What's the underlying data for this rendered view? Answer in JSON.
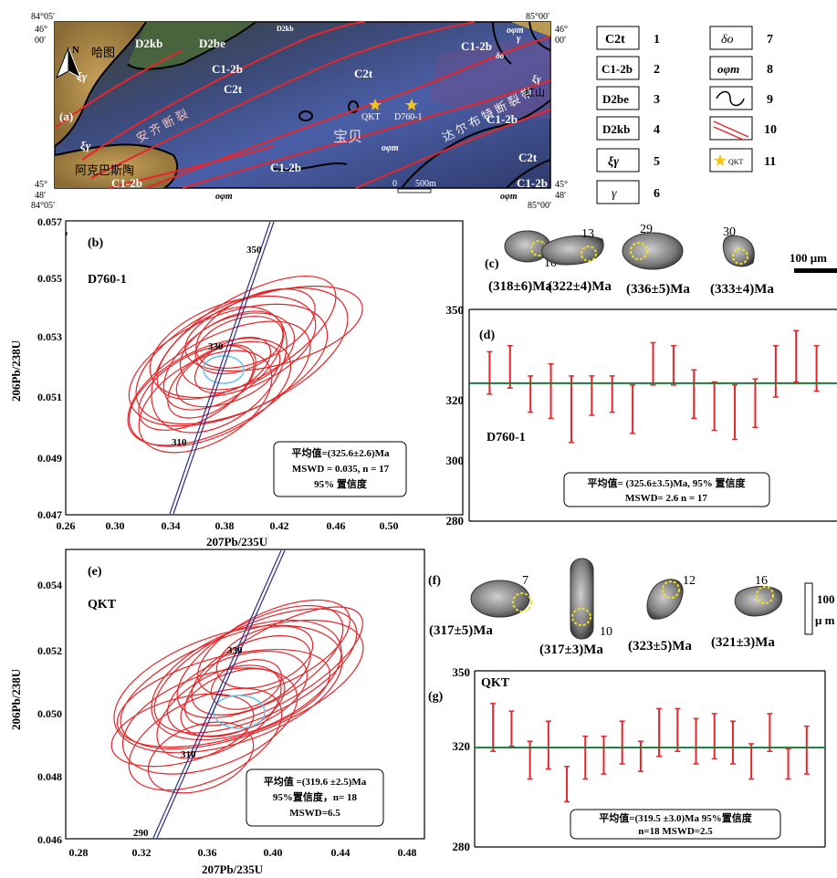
{
  "map": {
    "panel_label": "(a)",
    "coords": {
      "top_left_lon": "84°05′",
      "top_left_lat1": "46°",
      "top_left_lat2": "00′",
      "top_right_lon": "85°00′",
      "top_right_lat1": "46°",
      "top_right_lat2": "00′",
      "bottom_left_lon": "84°05′",
      "bottom_left_lat1": "45°",
      "bottom_left_lat2": "48′",
      "bottom_right_lon": "85°00′",
      "bottom_right_lat1": "45°",
      "bottom_right_lat2": "48′"
    },
    "north": "N",
    "scale": "500m",
    "scale_zero": "0",
    "labels": [
      "D2kb",
      "D2be",
      "D2kb",
      "C1-2b",
      "C2t",
      "C1-2b",
      "C2t",
      "C1-2b",
      "C2t",
      "C1-2b",
      "C1-2b",
      "C1-2b",
      "ξγ",
      "ξγ",
      "ξγ",
      "γ",
      "δο",
      "οφm",
      "οφm",
      "οφm",
      "οφm"
    ],
    "place_names": [
      "哈图",
      "安 齐 断 裂",
      "宝贝",
      "达 尔 布 特 断 裂 带",
      "红山",
      "阿克巴斯陶"
    ],
    "samples": [
      "QKT",
      "D760-1"
    ]
  },
  "legend": {
    "items": [
      {
        "num": "1",
        "symbol": "C2t"
      },
      {
        "num": "2",
        "symbol": "C1-2b"
      },
      {
        "num": "3",
        "symbol": "D2be"
      },
      {
        "num": "4",
        "symbol": "D2kb"
      },
      {
        "num": "5",
        "symbol": "ξγ"
      },
      {
        "num": "6",
        "symbol": "γ"
      },
      {
        "num": "7",
        "symbol": "δο"
      },
      {
        "num": "8",
        "symbol": "οφm"
      },
      {
        "num": "9",
        "symbol": ""
      },
      {
        "num": "10",
        "symbol": ""
      },
      {
        "num": "11",
        "symbol": "QKT"
      }
    ]
  },
  "panel_b": {
    "label": "(b)",
    "sample": "D760-1",
    "ylabel": "206Pb/238U",
    "xlabel": "207Pb/235U",
    "xticks": [
      "0.26",
      "0.30",
      "0.34",
      "0.38",
      "0.42",
      "0.46",
      "0.50"
    ],
    "yticks": [
      "0.047",
      "0.049",
      "0.051",
      "0.053",
      "0.055",
      "0.057"
    ],
    "concordia_labels": [
      "350",
      "330",
      "310"
    ],
    "summary": [
      "平均值=(325.6±2.6)Ma",
      "MSWD = 0.035,  n = 17",
      "95% 置信度"
    ]
  },
  "panel_c": {
    "label": "(c)",
    "grains": [
      {
        "num": "10",
        "age": "(318±6)Ma"
      },
      {
        "num": "13",
        "age": "(322±4)Ma"
      },
      {
        "num": "29",
        "age": "(336±5)Ma"
      },
      {
        "num": "30",
        "age": "(333±4)Ma"
      }
    ],
    "scale": "100 μm"
  },
  "panel_d": {
    "label": "(d)",
    "sample": "D760-1",
    "yticks": [
      "280",
      "300",
      "320",
      "350"
    ],
    "summary": [
      "平均值= (325.6±3.5)Ma, 95% 置信度",
      "MSWD= 2.6  n = 17"
    ]
  },
  "panel_e": {
    "label": "(e)",
    "sample": "QKT",
    "ylabel": "206Pb/238U",
    "xlabel": "207Pb/235U",
    "xticks": [
      "0.28",
      "0.32",
      "0.36",
      "0.40",
      "0.44",
      "0.48"
    ],
    "yticks": [
      "0.046",
      "0.048",
      "0.050",
      "0.052",
      "0.054"
    ],
    "concordia_labels": [
      "330",
      "310",
      "290"
    ],
    "summary": [
      "平均值 =(319.6 ±2.5)Ma",
      "95%置信度，n= 18",
      "MSWD=6.5"
    ]
  },
  "panel_f": {
    "label": "(f)",
    "grains": [
      {
        "num": "7",
        "age": "(317±5)Ma"
      },
      {
        "num": "10",
        "age": "(317±3)Ma"
      },
      {
        "num": "12",
        "age": "(323±5)Ma"
      },
      {
        "num": "16",
        "age": "(321±3)Ma"
      }
    ],
    "scale1": "100",
    "scale2": "μ m"
  },
  "panel_g": {
    "label": "(g)",
    "sample": "QKT",
    "yticks": [
      "280",
      "320",
      "350"
    ],
    "summary": [
      "平均值=(319.5 ±3.0)Ma   95%置信度",
      "n=18   MSWD=2.5"
    ]
  },
  "chart_data": [
    {
      "type": "bar",
      "title": "",
      "panel": "d",
      "ylim": [
        280,
        350
      ],
      "mean": 325.6,
      "errorbars": [
        [
          322,
          336
        ],
        [
          324,
          338
        ],
        [
          316,
          328
        ],
        [
          314,
          332
        ],
        [
          306,
          328
        ],
        [
          315,
          328
        ],
        [
          316,
          328
        ],
        [
          309,
          325
        ],
        [
          325,
          339
        ],
        [
          325,
          338
        ],
        [
          314,
          330
        ],
        [
          310,
          326
        ],
        [
          307,
          325
        ],
        [
          311,
          327
        ],
        [
          321,
          338
        ],
        [
          326,
          343
        ],
        [
          323,
          338
        ]
      ]
    },
    {
      "type": "bar",
      "title": "",
      "panel": "g",
      "ylim": [
        280,
        350
      ],
      "mean": 319.5,
      "errorbars": [
        [
          318,
          337
        ],
        [
          320,
          334
        ],
        [
          307,
          322
        ],
        [
          311,
          330
        ],
        [
          298,
          312
        ],
        [
          307,
          324
        ],
        [
          309,
          324
        ],
        [
          313,
          330
        ],
        [
          310,
          322
        ],
        [
          316,
          335
        ],
        [
          318,
          335
        ],
        [
          313,
          331
        ],
        [
          315,
          333
        ],
        [
          313,
          330
        ],
        [
          307,
          321
        ],
        [
          318,
          333
        ],
        [
          307,
          319
        ],
        [
          309,
          328
        ]
      ]
    }
  ]
}
